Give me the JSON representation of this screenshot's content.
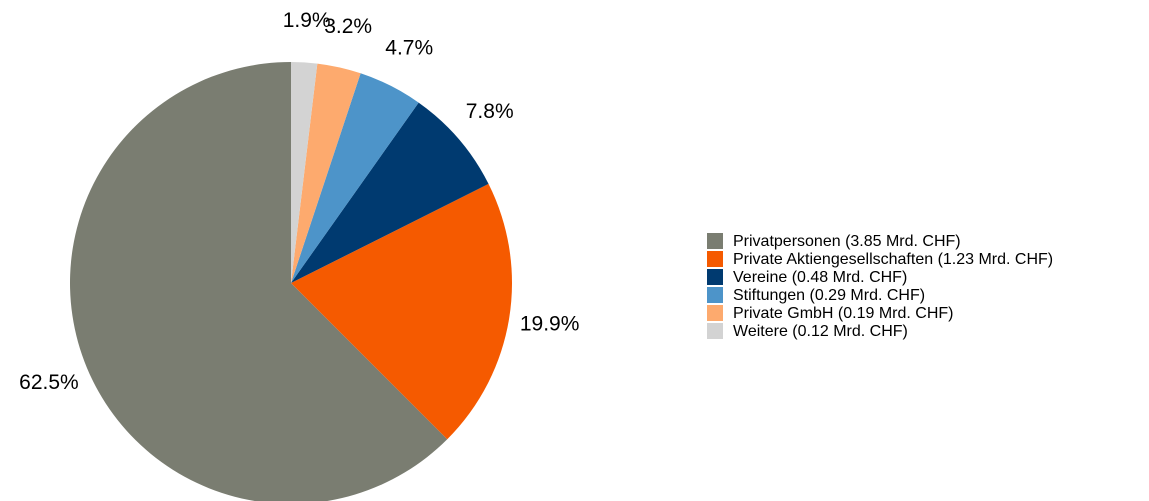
{
  "chart_data": {
    "type": "pie",
    "categories": [
      "Privatpersonen (3.85 Mrd. CHF)",
      "Private Aktiengesellschaften (1.23 Mrd. CHF)",
      "Vereine (0.48 Mrd. CHF)",
      "Stiftungen (0.29 Mrd. CHF)",
      "Private GmbH (0.19 Mrd. CHF)",
      "Weitere (0.12 Mrd. CHF)"
    ],
    "values": [
      62.5,
      19.9,
      7.8,
      4.7,
      3.2,
      1.9
    ],
    "value_labels": [
      "62.5%",
      "19.9%",
      "7.8%",
      "4.7%",
      "3.2%",
      "1.9%"
    ],
    "colors": [
      "#7a7d71",
      "#f55a00",
      "#003a70",
      "#4d94c9",
      "#fdaa6e",
      "#d3d3d3"
    ],
    "legend": "right"
  }
}
